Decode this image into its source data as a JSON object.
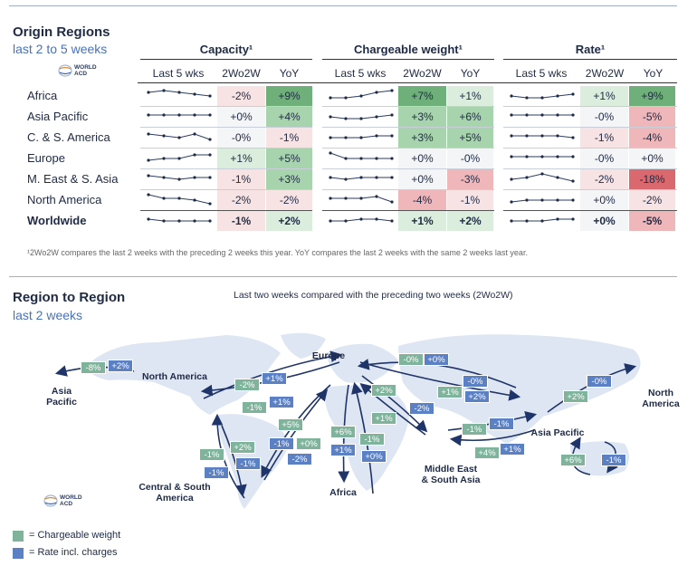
{
  "origin": {
    "title": "Origin Regions",
    "subtitle": "last 2 to 5 weeks",
    "logo_text": [
      "WORLD",
      "ACD"
    ],
    "groups": [
      {
        "title": "Capacity¹",
        "cols": [
          "Last 5 wks",
          "2Wo2W",
          "YoY"
        ]
      },
      {
        "title": "Chargeable weight¹",
        "cols": [
          "Last 5 wks",
          "2Wo2W",
          "YoY"
        ]
      },
      {
        "title": "Rate¹",
        "cols": [
          "Last 5 wks",
          "2Wo2W",
          "YoY"
        ]
      }
    ],
    "rows": [
      {
        "label": "Africa",
        "cap": {
          "spark": [
            6,
            7,
            6,
            5,
            4
          ],
          "wo": "-2%",
          "yoy": "+9%"
        },
        "cw": {
          "spark": [
            3,
            3,
            4,
            6,
            7
          ],
          "wo": "+7%",
          "yoy": "+1%"
        },
        "rate": {
          "spark": [
            4,
            3,
            3,
            4,
            5
          ],
          "wo": "+1%",
          "yoy": "+9%"
        }
      },
      {
        "label": "Asia Pacific",
        "cap": {
          "spark": [
            5,
            5,
            5,
            5,
            5
          ],
          "wo": "+0%",
          "yoy": "+4%"
        },
        "cw": {
          "spark": [
            4,
            3,
            3,
            4,
            5
          ],
          "wo": "+3%",
          "yoy": "+6%"
        },
        "rate": {
          "spark": [
            5,
            5,
            5,
            5,
            5
          ],
          "wo": "-0%",
          "yoy": "-5%"
        }
      },
      {
        "label": "C. & S. America",
        "cap": {
          "spark": [
            6,
            5,
            4,
            6,
            3
          ],
          "wo": "-0%",
          "yoy": "-1%"
        },
        "cw": {
          "spark": [
            4,
            4,
            4,
            5,
            5
          ],
          "wo": "+3%",
          "yoy": "+5%"
        },
        "rate": {
          "spark": [
            5,
            5,
            5,
            5,
            4
          ],
          "wo": "-1%",
          "yoy": "-4%"
        }
      },
      {
        "label": "Europe",
        "cap": {
          "spark": [
            3,
            4,
            4,
            6,
            6
          ],
          "wo": "+1%",
          "yoy": "+5%"
        },
        "cw": {
          "spark": [
            7,
            4,
            4,
            4,
            4
          ],
          "wo": "+0%",
          "yoy": "-0%"
        },
        "rate": {
          "spark": [
            5,
            5,
            5,
            5,
            5
          ],
          "wo": "-0%",
          "yoy": "+0%"
        }
      },
      {
        "label": "M. East & S. Asia",
        "cap": {
          "spark": [
            6,
            5,
            4,
            5,
            5
          ],
          "wo": "-1%",
          "yoy": "+3%"
        },
        "cw": {
          "spark": [
            5,
            4,
            5,
            5,
            5
          ],
          "wo": "+0%",
          "yoy": "-3%"
        },
        "rate": {
          "spark": [
            4,
            5,
            7,
            5,
            3
          ],
          "wo": "-2%",
          "yoy": "-18%"
        }
      },
      {
        "label": "North America",
        "cap": {
          "spark": [
            7,
            5,
            5,
            4,
            2
          ],
          "wo": "-2%",
          "yoy": "-2%"
        },
        "cw": {
          "spark": [
            5,
            5,
            5,
            6,
            3
          ],
          "wo": "-4%",
          "yoy": "-1%"
        },
        "rate": {
          "spark": [
            3,
            4,
            4,
            4,
            4
          ],
          "wo": "+0%",
          "yoy": "-2%"
        }
      },
      {
        "label": "Worldwide",
        "bold": true,
        "cap": {
          "spark": [
            5,
            4,
            4,
            4,
            4
          ],
          "wo": "-1%",
          "yoy": "+2%"
        },
        "cw": {
          "spark": [
            4,
            4,
            5,
            5,
            4
          ],
          "wo": "+1%",
          "yoy": "+2%"
        },
        "rate": {
          "spark": [
            4,
            4,
            4,
            5,
            5
          ],
          "wo": "+0%",
          "yoy": "-5%"
        }
      }
    ],
    "footnote": "¹2Wo2W compares the last 2 weeks with the preceding 2 weeks this year. YoY compares the last 2 weeks with the same 2 weeks last year."
  },
  "region": {
    "title": "Region to Region",
    "subtitle": "last 2 weeks",
    "note": "Last two weeks compared with the preceding two weeks (2Wo2W)",
    "logo_text": [
      "WORLD",
      "ACD"
    ],
    "regions": [
      {
        "id": "asia-pacific-w",
        "text": [
          "Asia",
          "Pacific"
        ]
      },
      {
        "id": "north-america",
        "text": [
          "North America"
        ]
      },
      {
        "id": "europe",
        "text": [
          "Europe"
        ]
      },
      {
        "id": "north-america-e",
        "text": [
          "North",
          "America"
        ]
      },
      {
        "id": "asia-pacific",
        "text": [
          "Asia Pacific"
        ]
      },
      {
        "id": "central-south-america",
        "text": [
          "Central & South",
          "America"
        ]
      },
      {
        "id": "africa",
        "text": [
          "Africa"
        ]
      },
      {
        "id": "middle-east",
        "text": [
          "Middle East",
          "& South Asia"
        ]
      }
    ],
    "badges": [
      {
        "t": "-8%",
        "c": "g"
      },
      {
        "t": "+2%",
        "c": "b"
      },
      {
        "t": "-2%",
        "c": "g"
      },
      {
        "t": "+1%",
        "c": "b"
      },
      {
        "t": "-1%",
        "c": "g"
      },
      {
        "t": "+1%",
        "c": "b"
      },
      {
        "t": "-0%",
        "c": "g"
      },
      {
        "t": "+0%",
        "c": "b"
      },
      {
        "t": "+2%",
        "c": "g"
      },
      {
        "t": "-2%",
        "c": "b"
      },
      {
        "t": "+1%",
        "c": "g"
      },
      {
        "t": "+2%",
        "c": "b"
      },
      {
        "t": "+1%",
        "c": "g"
      },
      {
        "t": "-0%",
        "c": "b"
      },
      {
        "t": "+5%",
        "c": "g"
      },
      {
        "t": "-1%",
        "c": "b"
      },
      {
        "t": "+0%",
        "c": "g"
      },
      {
        "t": "-2%",
        "c": "b"
      },
      {
        "t": "+6%",
        "c": "g"
      },
      {
        "t": "+1%",
        "c": "b"
      },
      {
        "t": "-1%",
        "c": "g"
      },
      {
        "t": "+0%",
        "c": "b"
      },
      {
        "t": "-1%",
        "c": "g"
      },
      {
        "t": "-1%",
        "c": "b"
      },
      {
        "t": "+4%",
        "c": "g"
      },
      {
        "t": "+1%",
        "c": "b"
      },
      {
        "t": "+2%",
        "c": "g"
      },
      {
        "t": "-0%",
        "c": "b"
      },
      {
        "t": "+6%",
        "c": "g"
      },
      {
        "t": "-1%",
        "c": "b"
      },
      {
        "t": "-1%",
        "c": "g"
      },
      {
        "t": "-1%",
        "c": "b"
      },
      {
        "t": "+2%",
        "c": "g"
      },
      {
        "t": "-1%",
        "c": "b"
      }
    ],
    "legend": [
      {
        "text": "= Chargeable weight",
        "color": "#7fb39b"
      },
      {
        "text": "= Rate incl. charges",
        "color": "#5b80c4"
      }
    ]
  },
  "colors": {
    "green_strong": "#6fb07a",
    "green_mid": "#a8d4ad",
    "green_light": "#dbeede",
    "red_strong": "#d9696f",
    "red_mid": "#efb7ba",
    "red_light": "#f8e3e4",
    "neutral": "#f4f5f7"
  }
}
